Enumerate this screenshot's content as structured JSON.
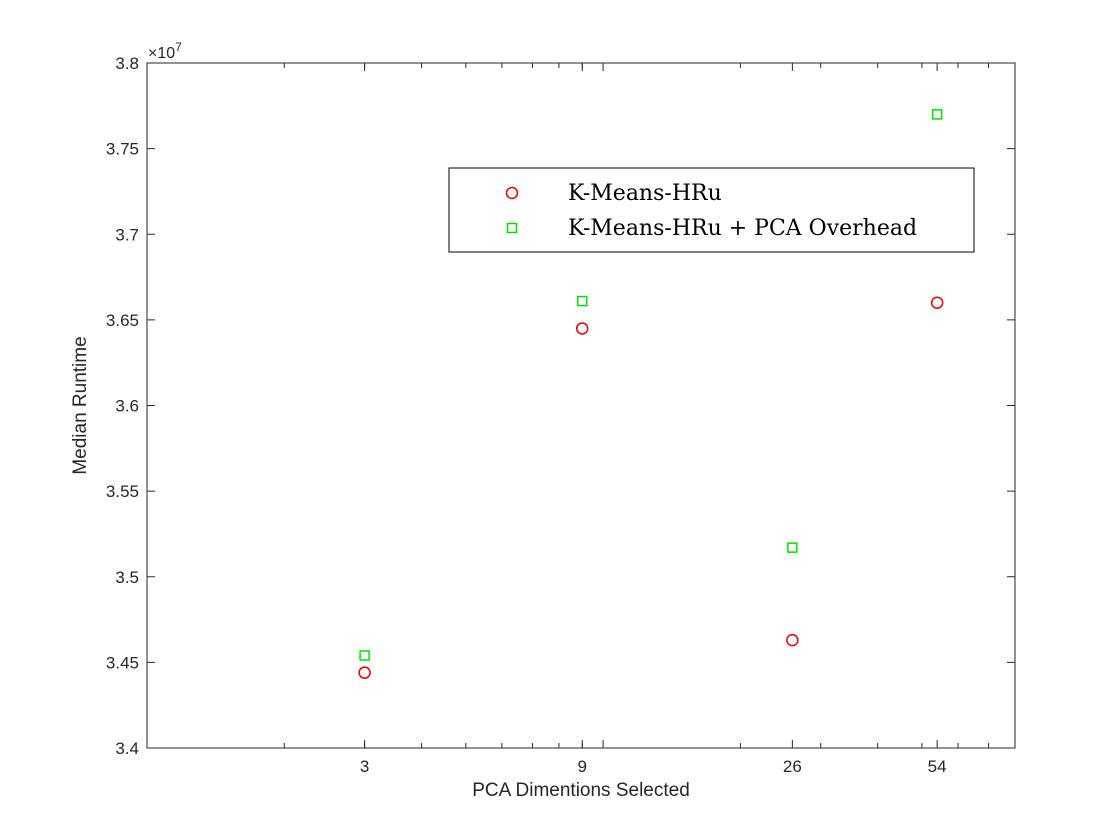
{
  "chart_data": {
    "type": "scatter",
    "xlabel": "PCA Dimentions Selected",
    "ylabel": "Median Runtime",
    "x_scale": "log",
    "xlim": [
      1,
      80
    ],
    "ylim": [
      34000000,
      38000000
    ],
    "x_ticks": [
      3,
      9,
      26,
      54
    ],
    "x_tick_labels": [
      "3",
      "9",
      "26",
      "54"
    ],
    "y_ticks": [
      34000000,
      34500000,
      35000000,
      35500000,
      36000000,
      36500000,
      37000000,
      37500000,
      38000000
    ],
    "y_tick_labels": [
      "3.4",
      "3.45",
      "3.5",
      "3.55",
      "3.6",
      "3.65",
      "3.7",
      "3.75",
      "3.8"
    ],
    "y_exponent_label": "×10",
    "y_exponent_power": "7",
    "grid": false,
    "legend_position": "top-right",
    "series": [
      {
        "name": "K-Means-HRu",
        "marker": "circle",
        "color": "#e00000",
        "x": [
          3,
          9,
          26,
          54
        ],
        "y": [
          34440000,
          36450000,
          34630000,
          36600000
        ]
      },
      {
        "name": "K-Means-HRu + PCA Overhead",
        "marker": "square",
        "color": "#00e000",
        "x": [
          3,
          9,
          26,
          54
        ],
        "y": [
          34540000,
          36610000,
          35170000,
          37700000
        ]
      }
    ]
  }
}
